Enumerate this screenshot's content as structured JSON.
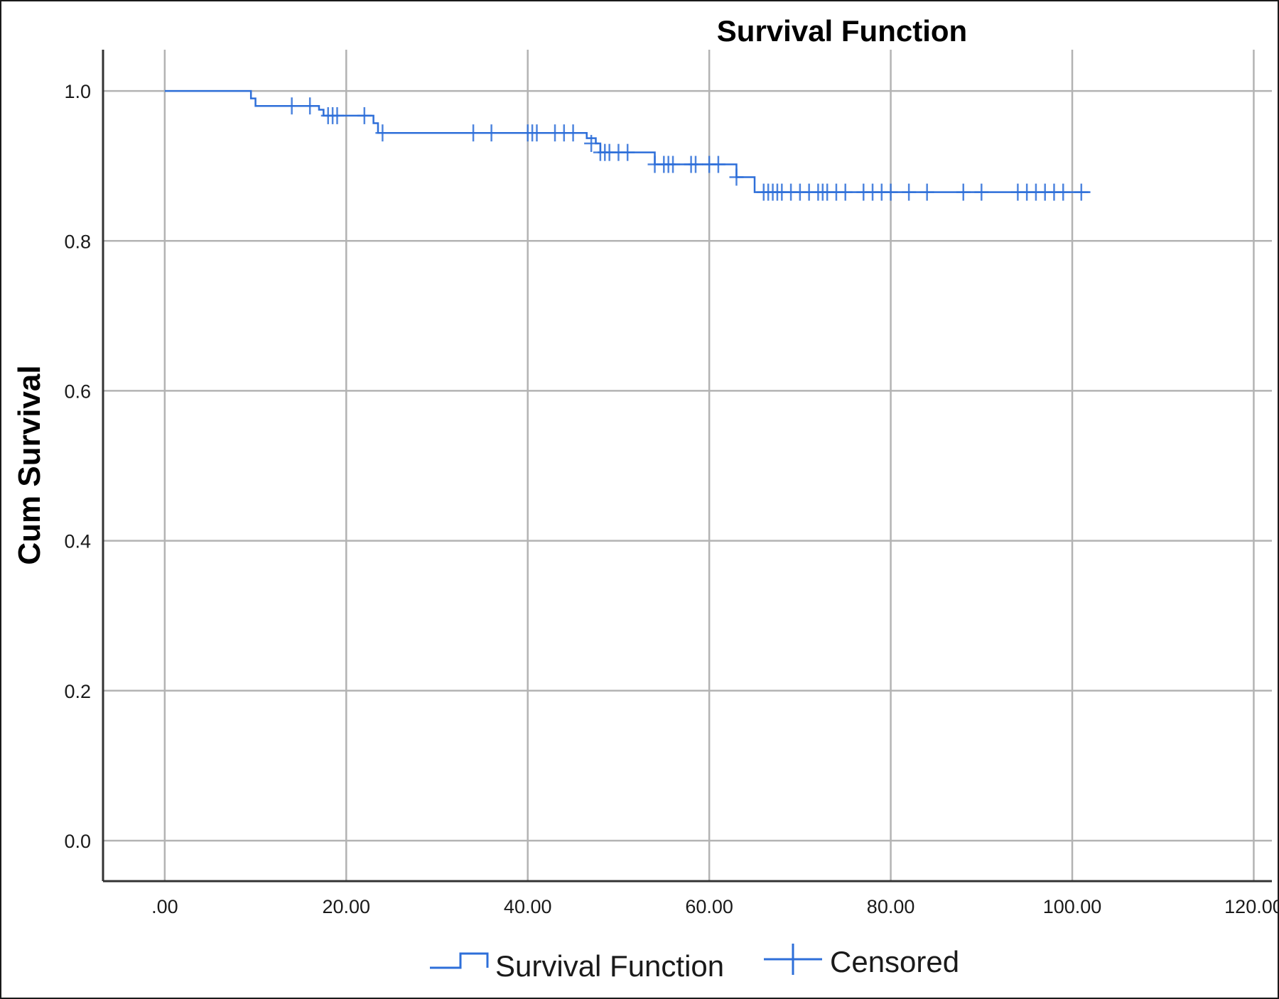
{
  "chart_data": {
    "type": "line",
    "title": "Survival Function",
    "xlabel": "",
    "ylabel": "Cum Survival",
    "xlim": [
      -6.8,
      122
    ],
    "ylim": [
      -0.054,
      1.055
    ],
    "x_ticks": [
      0,
      20,
      40,
      60,
      80,
      100,
      120
    ],
    "x_tick_labels": [
      ".00",
      "20.00",
      "40.00",
      "60.00",
      "80.00",
      "100.00",
      "120.00"
    ],
    "y_ticks": [
      0.0,
      0.2,
      0.4,
      0.6,
      0.8,
      1.0
    ],
    "y_tick_labels": [
      "0.0",
      "0.2",
      "0.4",
      "0.6",
      "0.8",
      "1.0"
    ],
    "grid": true,
    "legend_position": "bottom",
    "legend": [
      "Survival Function",
      "Censored"
    ],
    "colors": {
      "series": "#2e6fd9",
      "grid": "#b3b3b3",
      "axis": "#333333"
    },
    "series": [
      {
        "name": "Survival Function",
        "style": "step",
        "x": [
          0,
          9,
          9.5,
          10,
          16,
          17,
          17.5,
          22.5,
          23,
          23.5,
          46,
          46.5,
          47.5,
          48,
          54,
          63,
          65
        ],
        "y": [
          1.0,
          1.0,
          0.99,
          0.98,
          0.98,
          0.975,
          0.967,
          0.967,
          0.957,
          0.944,
          0.944,
          0.937,
          0.93,
          0.918,
          0.902,
          0.885,
          0.865
        ]
      },
      {
        "name": "Censored",
        "marker": "+",
        "x": [
          14,
          16,
          18,
          18.5,
          19,
          22,
          24,
          34,
          36,
          40,
          40.5,
          41,
          43,
          44,
          45,
          47,
          48,
          48.5,
          49,
          50,
          51,
          54,
          55,
          55.5,
          56,
          58,
          58.5,
          60,
          61,
          63,
          66,
          66.5,
          67,
          67.5,
          68,
          69,
          70,
          71,
          72,
          72.5,
          73,
          74,
          75,
          77,
          78,
          79,
          80,
          82,
          84,
          88,
          90,
          94,
          95,
          96,
          97,
          98,
          99,
          101
        ],
        "y": [
          0.98,
          0.98,
          0.967,
          0.967,
          0.967,
          0.967,
          0.944,
          0.944,
          0.944,
          0.944,
          0.944,
          0.944,
          0.944,
          0.944,
          0.944,
          0.93,
          0.918,
          0.918,
          0.918,
          0.918,
          0.918,
          0.902,
          0.902,
          0.902,
          0.902,
          0.902,
          0.902,
          0.902,
          0.902,
          0.885,
          0.865,
          0.865,
          0.865,
          0.865,
          0.865,
          0.865,
          0.865,
          0.865,
          0.865,
          0.865,
          0.865,
          0.865,
          0.865,
          0.865,
          0.865,
          0.865,
          0.865,
          0.865,
          0.865,
          0.865,
          0.865,
          0.865,
          0.865,
          0.865,
          0.865,
          0.865,
          0.865,
          0.865
        ]
      }
    ],
    "step_end_x": 102
  }
}
